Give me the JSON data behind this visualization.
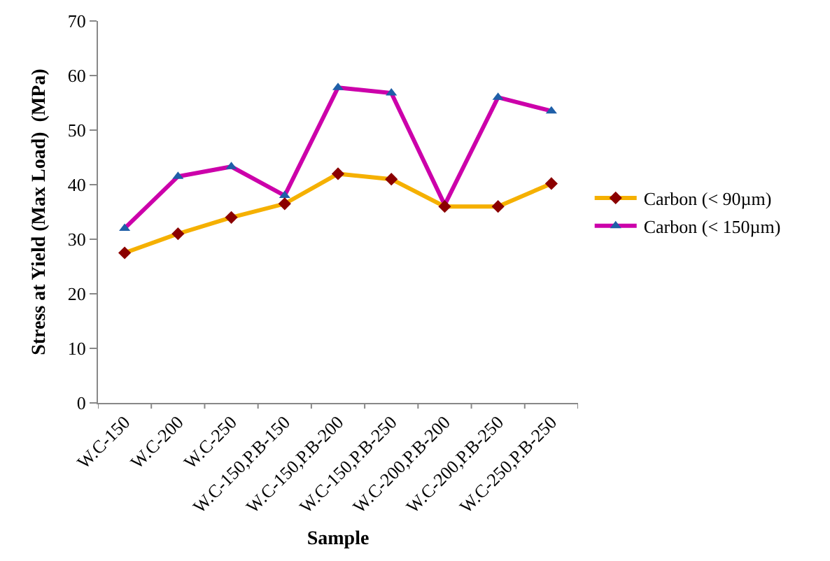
{
  "chart_data": {
    "type": "line",
    "xlabel": "Sample",
    "ylabel": "Stress at Yield (Max Load)  (MPa)",
    "categories": [
      "W.C-150",
      "W.C-200",
      "W.C-250",
      "W.C-150,P.B-150",
      "W.C-150,P.B-200",
      "W.C-150,P.B-250",
      "W.C-200,P.B-200",
      "W.C-200,P.B-250",
      "W.C-250,P.B-250"
    ],
    "series": [
      {
        "name": "Carbon (< 90µm)",
        "color": "#f5b000",
        "marker": "diamond",
        "colors": [
          "#8b0000",
          "#8b0000",
          "#8b0000",
          "#8b0000",
          "#8b0000",
          "#8b0000",
          "#8b0000",
          "#8b0000",
          "#8b0000"
        ],
        "values": [
          27.5,
          31,
          34,
          36.5,
          42,
          41,
          36,
          36,
          40.2
        ]
      },
      {
        "name": "Carbon (< 150µm)",
        "color": "#cc00aa",
        "marker": "triangle",
        "colors": [
          "#1f5fa8",
          "#1f5fa8",
          "#1f5fa8",
          "#1f5fa8",
          "#1f5fa8",
          "#1f5fa8",
          "#1f5fa8",
          "#1f5fa8",
          "#1f5fa8"
        ],
        "values": [
          32,
          41.5,
          43.3,
          38,
          57.8,
          56.8,
          36.3,
          56,
          53.5
        ]
      }
    ],
    "ylim": [
      0,
      70
    ],
    "yticks": [
      0,
      10,
      20,
      30,
      40,
      50,
      60,
      70
    ],
    "grid": false,
    "legend": "right"
  }
}
